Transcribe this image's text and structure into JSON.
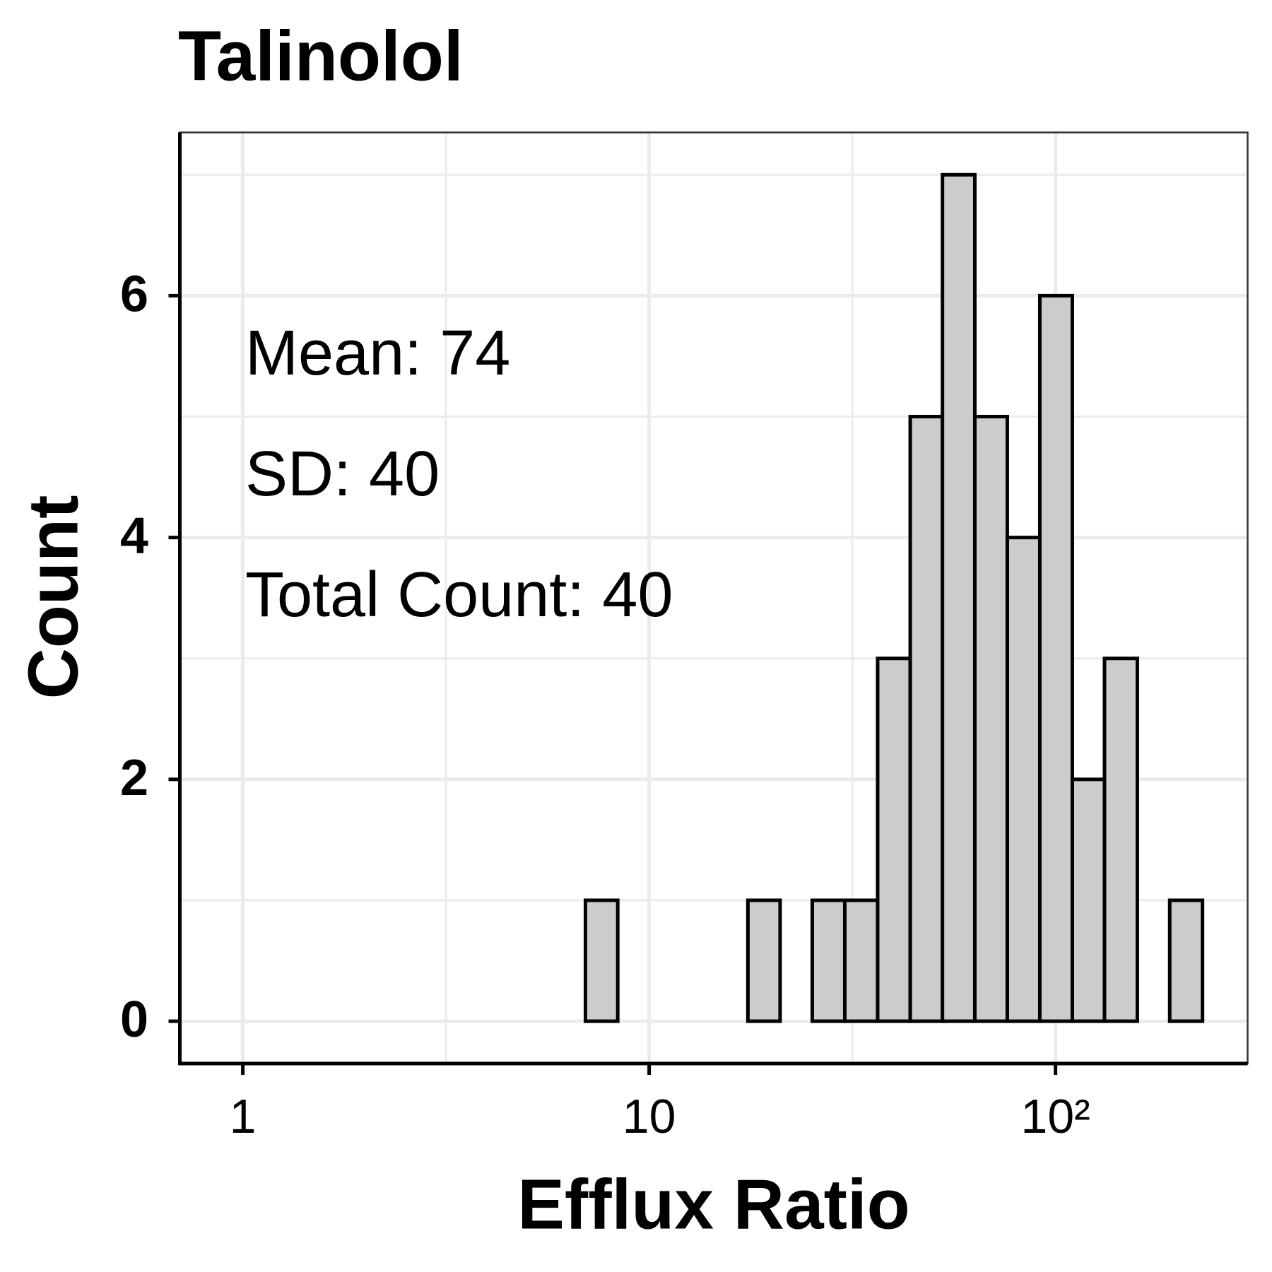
{
  "chart_data": {
    "type": "histogram",
    "title": "Talinolol",
    "x_label": "Efflux Ratio",
    "y_label": "Count",
    "annotations": [
      "Mean: 74",
      "SD: 40",
      "Total Count: 40"
    ],
    "bins": [
      0.92,
      1.106,
      1.33,
      1.6,
      1.92,
      2.31,
      2.78,
      3.34,
      4.01,
      4.82,
      5.79,
      6.97,
      8.37,
      10.06,
      12.1,
      14.5,
      17.5,
      21.0,
      25.2,
      30.3,
      36.5,
      43.9,
      52.7,
      63.3,
      76.1,
      91.5,
      110,
      132,
      159,
      191,
      230
    ],
    "counts": [
      0,
      0,
      0,
      0,
      0,
      0,
      0,
      0,
      0,
      0,
      0,
      1,
      0,
      0,
      0,
      0,
      1,
      0,
      1,
      1,
      3,
      5,
      7,
      5,
      4,
      6,
      2,
      3,
      0,
      1
    ],
    "color": "#cccccc",
    "edgecolor": "#000000",
    "xscale": "log",
    "xlim": [
      0.7,
      297
    ],
    "xticks": [
      1,
      10,
      {
        "value": 100,
        "label": "10²"
      }
    ],
    "ylim": [
      -0.35,
      7.35
    ],
    "yticks": [
      0,
      2,
      4,
      6
    ],
    "grid": true
  }
}
